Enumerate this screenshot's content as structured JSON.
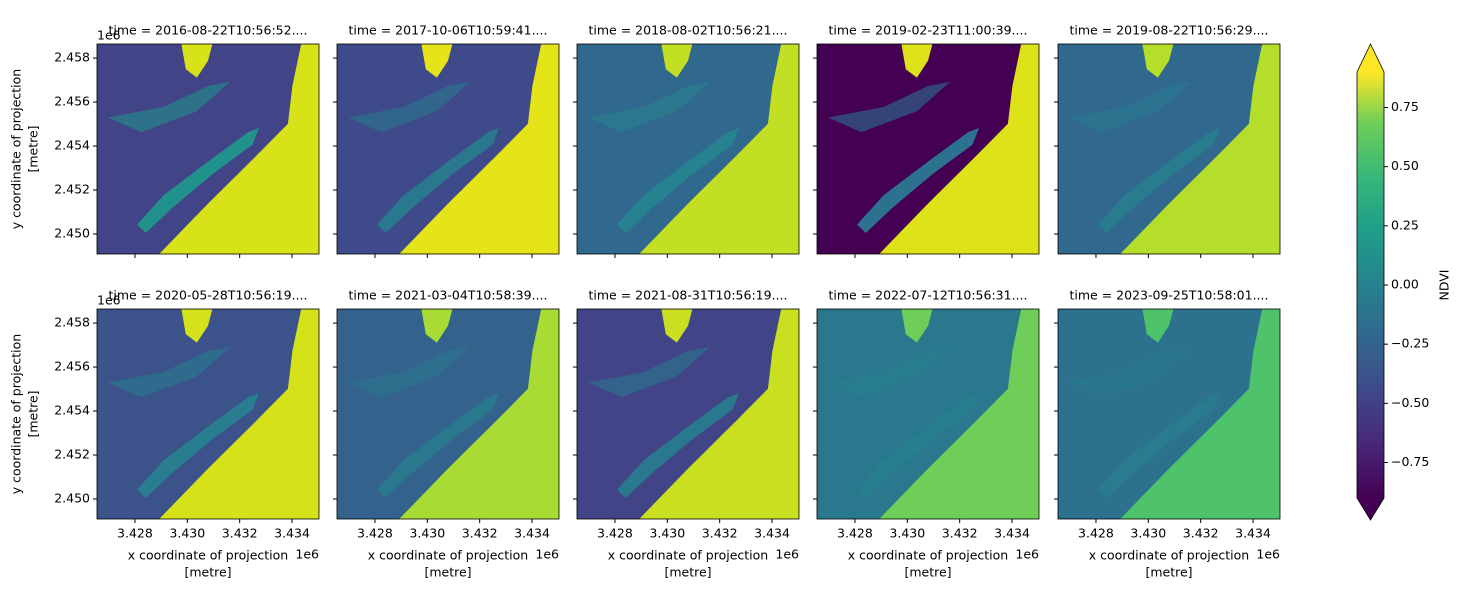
{
  "chart_data": {
    "type": "raster-facets",
    "panels": [
      {
        "title": "time = 2016-08-22T10:56:52...."
      },
      {
        "title": "time = 2017-10-06T10:59:41...."
      },
      {
        "title": "time = 2018-08-02T10:56:21...."
      },
      {
        "title": "time = 2019-02-23T11:00:39...."
      },
      {
        "title": "time = 2019-08-22T10:56:29...."
      },
      {
        "title": "time = 2020-05-28T10:56:19...."
      },
      {
        "title": "time = 2021-03-04T10:58:39...."
      },
      {
        "title": "time = 2021-08-31T10:56:19...."
      },
      {
        "title": "time = 2022-07-12T10:56:31...."
      },
      {
        "title": "time = 2023-09-25T10:58:01...."
      }
    ],
    "columns": 5,
    "xlabel": [
      "x coordinate of projection",
      "[metre]"
    ],
    "ylabel": [
      "y coordinate of projection",
      "[metre]"
    ],
    "xoffset": "1e6",
    "yoffset": "1e6",
    "xlim": [
      3426550,
      3435030
    ],
    "ylim": [
      2449090,
      2458640
    ],
    "xticks": [
      {
        "value": 3428000,
        "label": "3.428"
      },
      {
        "value": 3430000,
        "label": "3.430"
      },
      {
        "value": 3432000,
        "label": "3.432"
      },
      {
        "value": 3434000,
        "label": "3.434"
      }
    ],
    "yticks": [
      {
        "value": 2450000,
        "label": "2.450"
      },
      {
        "value": 2452000,
        "label": "2.452"
      },
      {
        "value": 2454000,
        "label": "2.454"
      },
      {
        "value": 2456000,
        "label": "2.456"
      },
      {
        "value": 2458000,
        "label": "2.458"
      }
    ],
    "colorbar": {
      "label": "NDVI",
      "lim": [
        -0.9,
        0.9
      ],
      "extend": "both",
      "ticks": [
        {
          "value": -0.75,
          "label": "−0.75"
        },
        {
          "value": -0.5,
          "label": "−0.50"
        },
        {
          "value": -0.25,
          "label": "−0.25"
        },
        {
          "value": 0,
          "label": "0.00"
        },
        {
          "value": 0.25,
          "label": "0.25"
        },
        {
          "value": 0.5,
          "label": "0.50"
        },
        {
          "value": 0.75,
          "label": "0.75"
        }
      ]
    }
  }
}
